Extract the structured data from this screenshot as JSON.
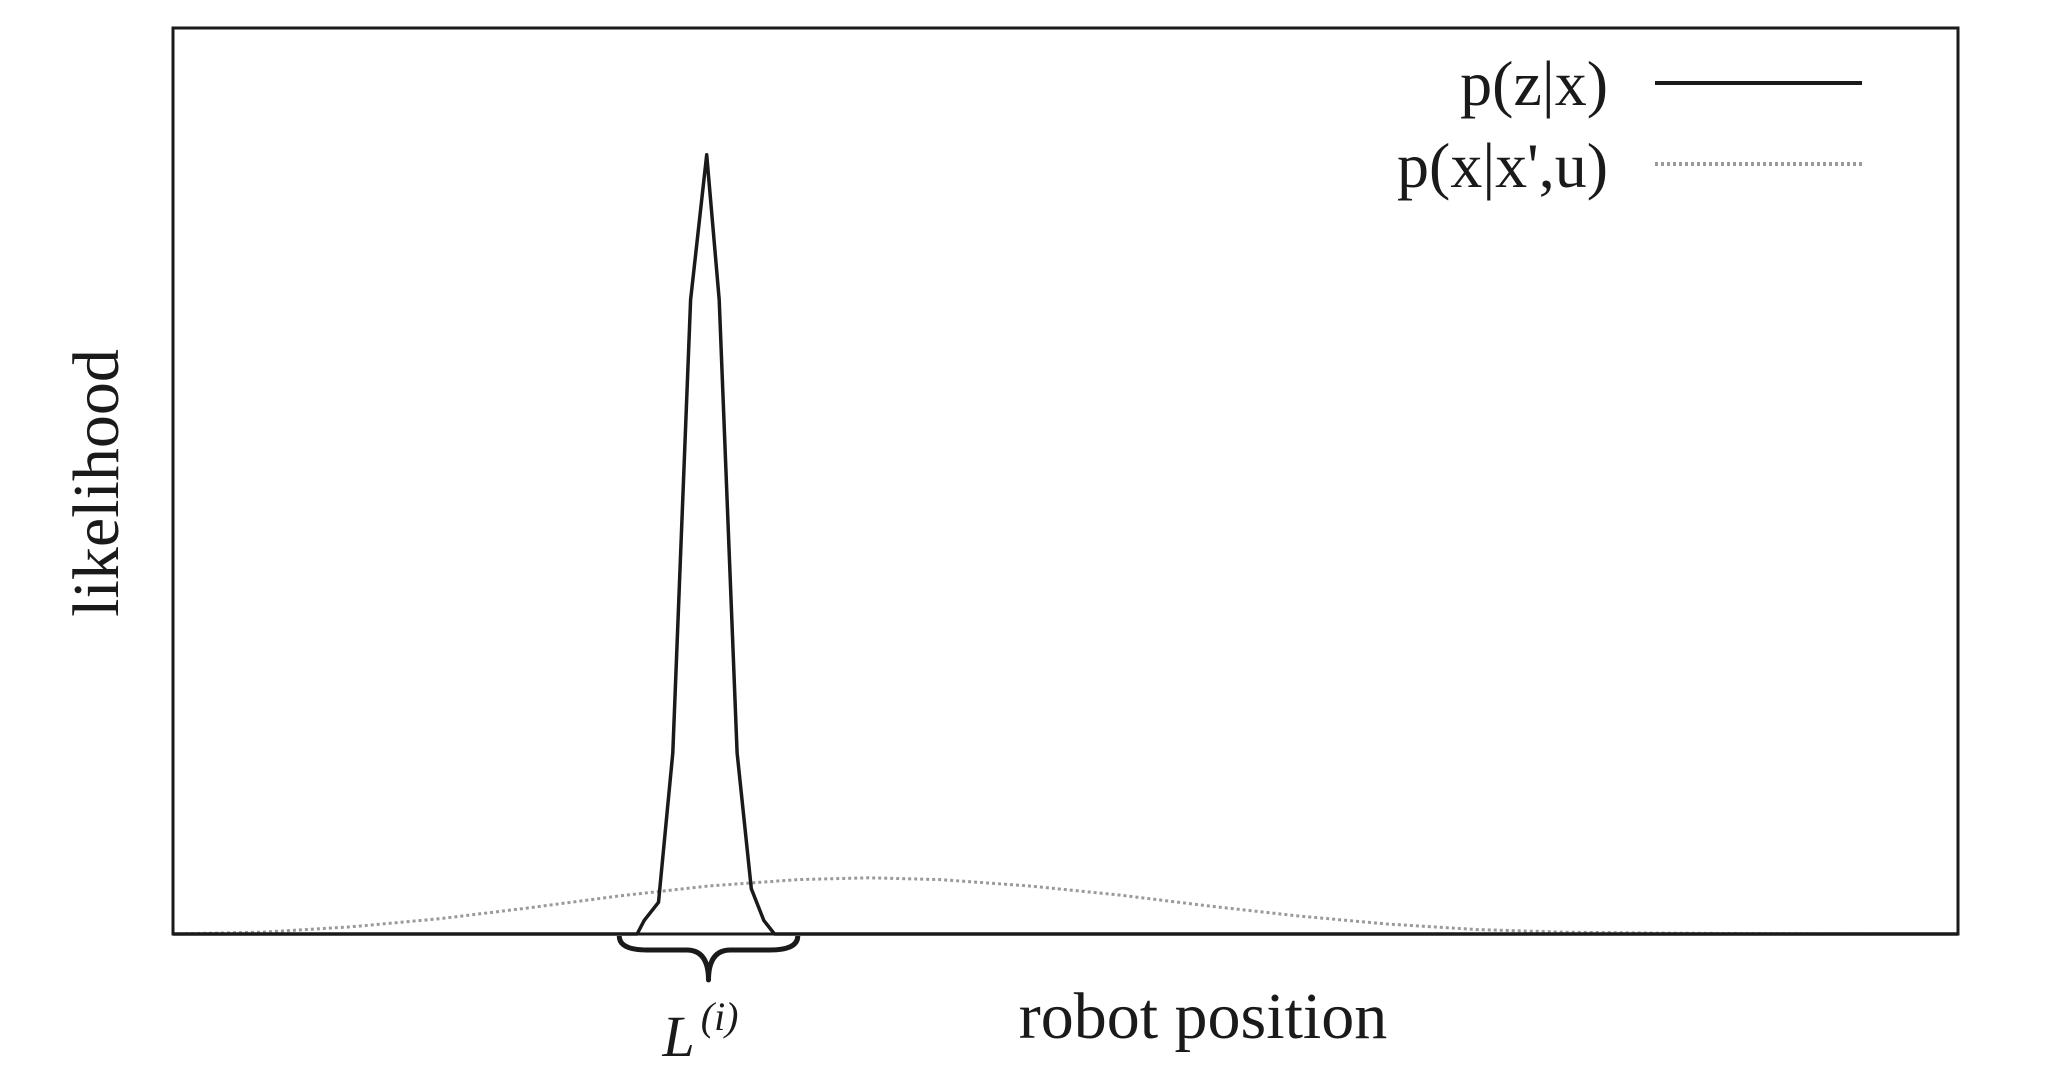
{
  "chart_data": {
    "type": "line",
    "title": "",
    "xlabel": "robot position",
    "ylabel": "likelihood",
    "xlim": [
      0,
      100
    ],
    "ylim": [
      0,
      100
    ],
    "grid": false,
    "legend_position": "top-right",
    "colors": {
      "frame": "#1a1a1a",
      "sensor_series": "#1a1a1a",
      "motion_series": "#9a9a9a"
    },
    "series": [
      {
        "name": "p(z|x)",
        "style": "solid",
        "x": [
          0,
          26.0,
          26.4,
          27.2,
          28.0,
          29.0,
          29.9,
          30.6,
          31.6,
          32.4,
          33.1,
          33.7,
          100
        ],
        "y": [
          0,
          0,
          1.5,
          3.5,
          20,
          70,
          86,
          70,
          20,
          5,
          1.5,
          0,
          0
        ]
      },
      {
        "name": "p(x|x',u)",
        "style": "dotted",
        "x": [
          0,
          5,
          10,
          15,
          20,
          25,
          30,
          35,
          39,
          43,
          48,
          53,
          58,
          63,
          68,
          73,
          78,
          83,
          88,
          93,
          100
        ],
        "y": [
          0,
          0.2,
          0.8,
          1.7,
          2.9,
          4.2,
          5.3,
          6.0,
          6.2,
          6.0,
          5.3,
          4.3,
          3.1,
          2.0,
          1.1,
          0.5,
          0.2,
          0.1,
          0.04,
          0.01,
          0
        ]
      }
    ],
    "annotations": [
      {
        "type": "brace",
        "x_from": 25.0,
        "x_to": 35.0,
        "label": "L",
        "label_superscript": "(i)"
      }
    ]
  }
}
